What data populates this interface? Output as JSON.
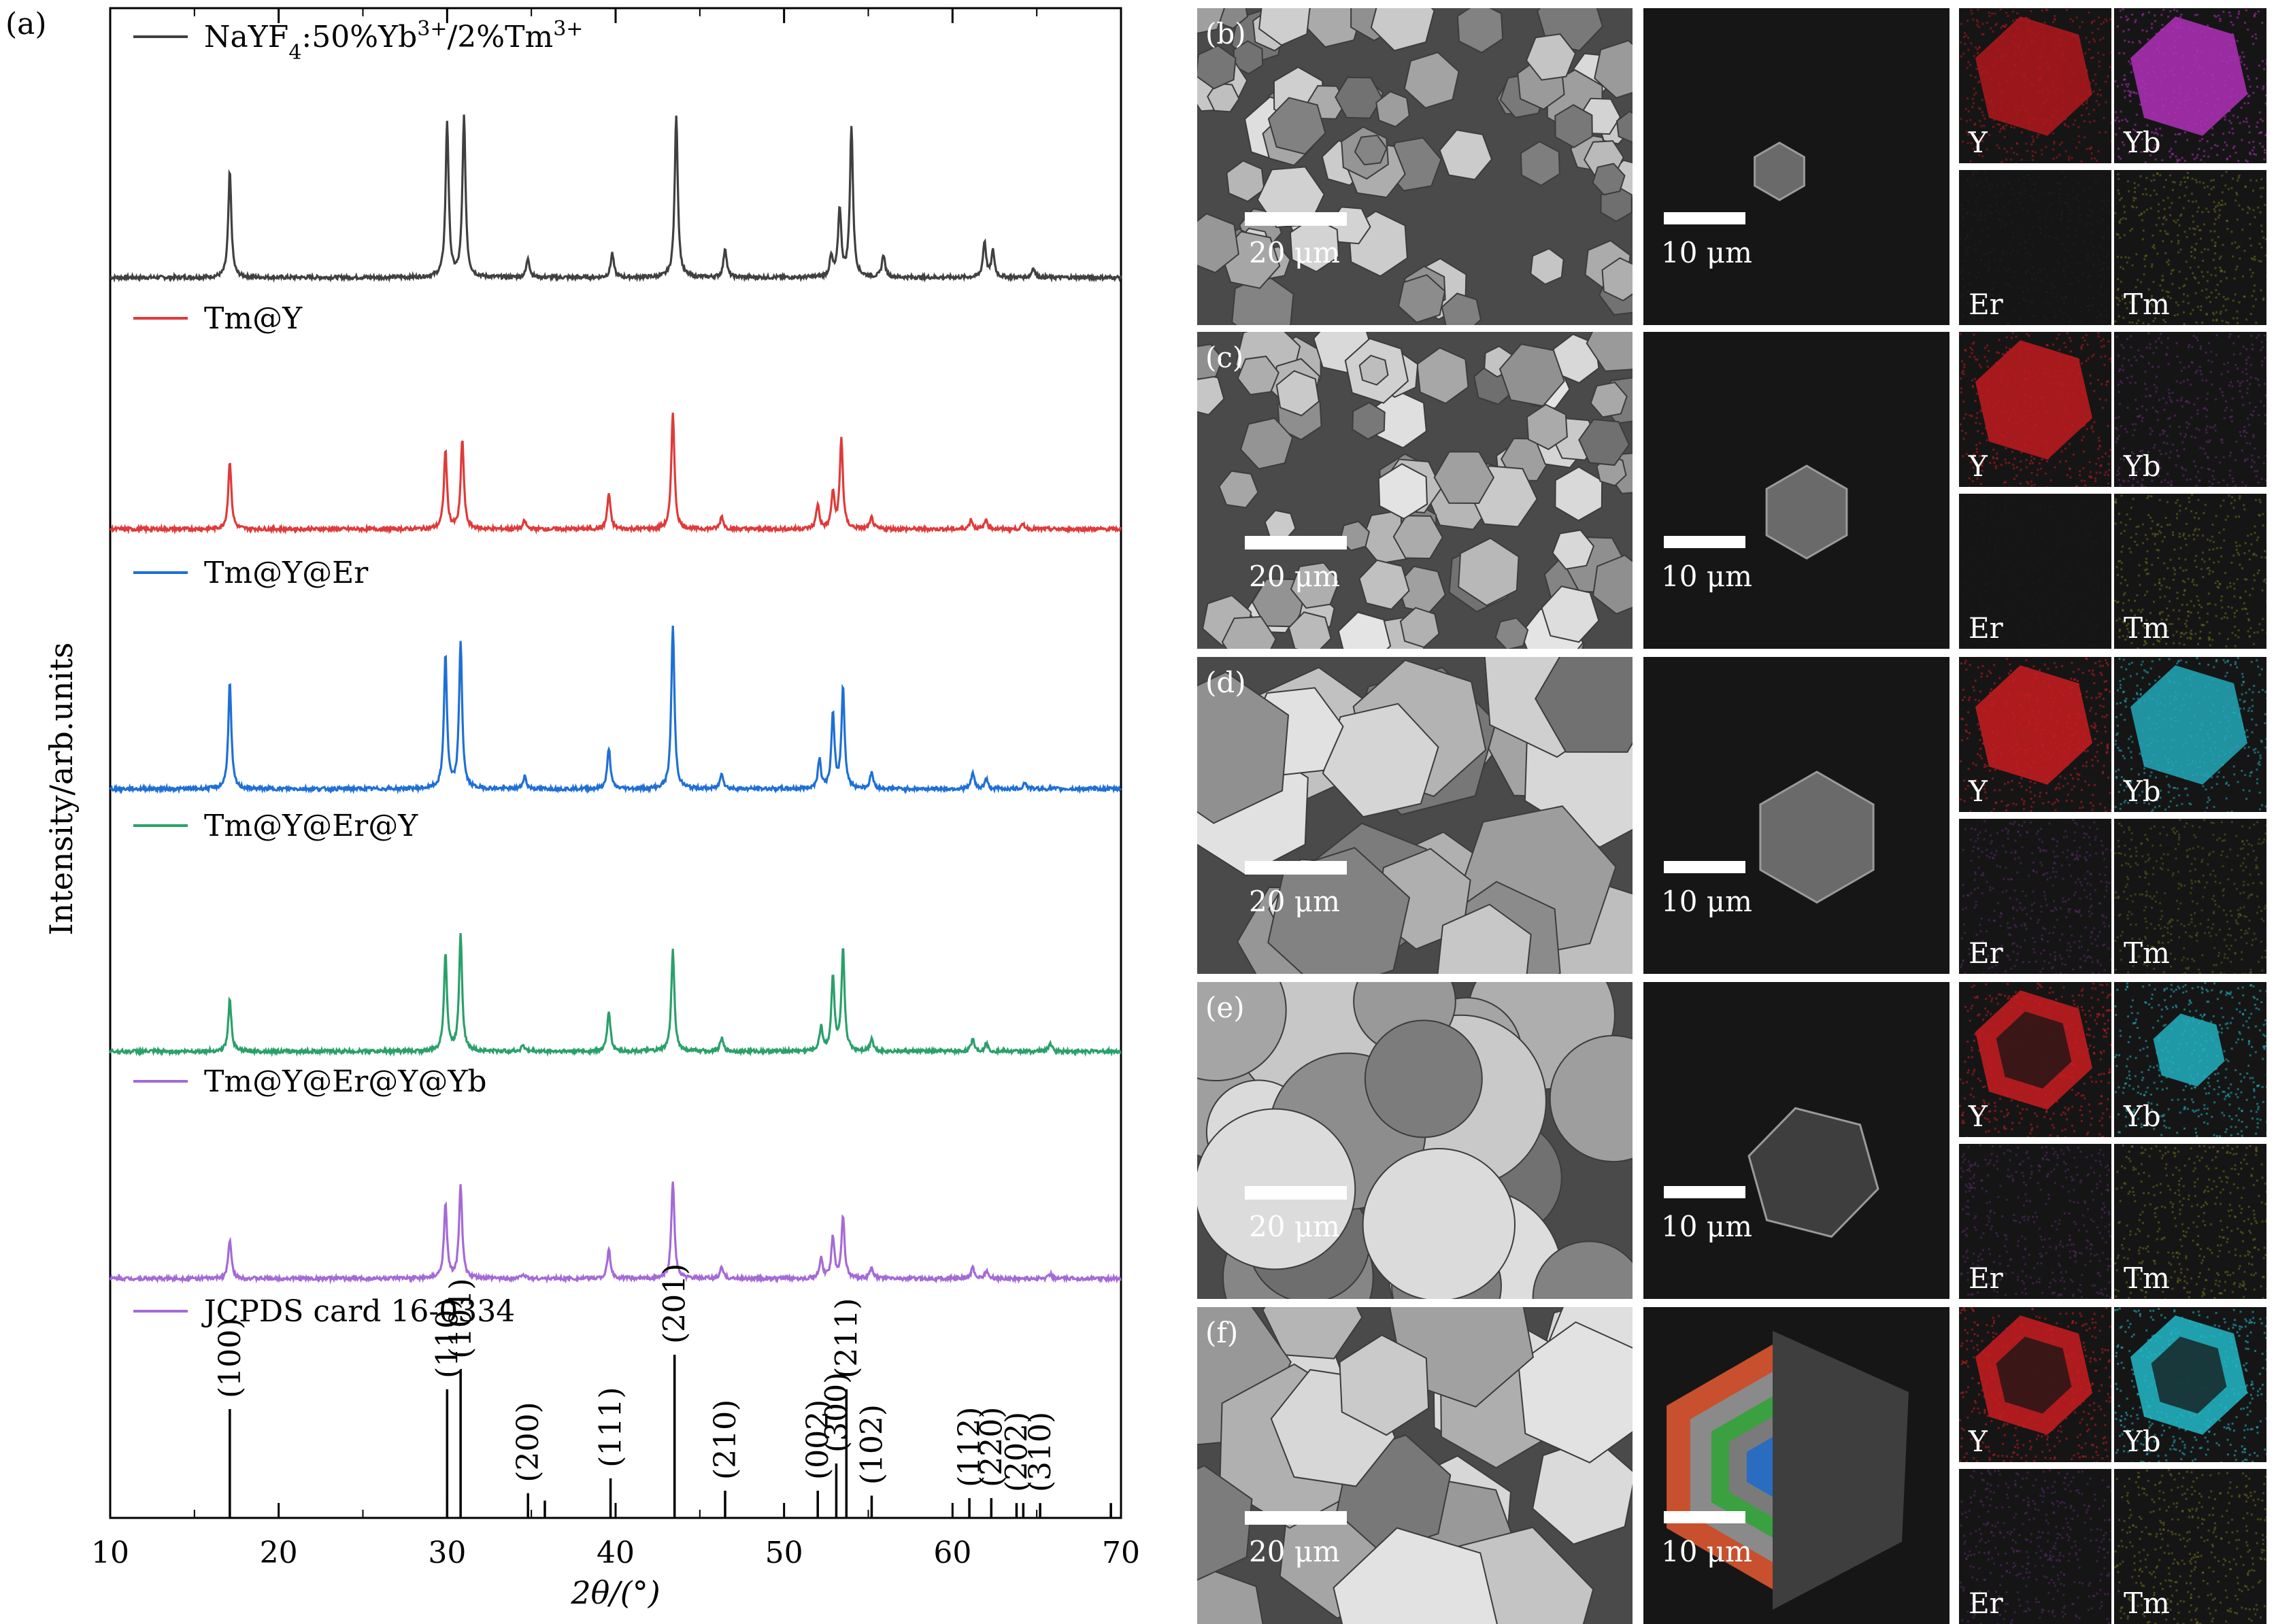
{
  "panel_a_label": "(a)",
  "chart_data": {
    "type": "line",
    "xlabel": "2θ/(°)",
    "ylabel": "Intensity/arb.units",
    "xlim": [
      10,
      70
    ],
    "xticks": [
      10,
      20,
      30,
      40,
      50,
      60,
      70
    ],
    "series": [
      {
        "name": "NaYF4:50%Yb3+/2%Tm3+",
        "color": "#404040",
        "peaks": [
          [
            17.1,
            0.65
          ],
          [
            30.0,
            0.95
          ],
          [
            31.0,
            0.98
          ],
          [
            34.8,
            0.12
          ],
          [
            39.8,
            0.15
          ],
          [
            43.6,
            1.0
          ],
          [
            46.5,
            0.18
          ],
          [
            52.8,
            0.12
          ],
          [
            53.3,
            0.42
          ],
          [
            54.0,
            0.92
          ],
          [
            55.9,
            0.14
          ],
          [
            61.9,
            0.22
          ],
          [
            62.4,
            0.16
          ],
          [
            64.8,
            0.06
          ]
        ]
      },
      {
        "name": "Tm@Y",
        "color": "#e03a3a",
        "peaks": [
          [
            17.1,
            0.42
          ],
          [
            29.9,
            0.48
          ],
          [
            30.9,
            0.55
          ],
          [
            34.6,
            0.05
          ],
          [
            39.6,
            0.22
          ],
          [
            43.4,
            0.72
          ],
          [
            46.3,
            0.08
          ],
          [
            52.0,
            0.15
          ],
          [
            52.9,
            0.22
          ],
          [
            53.4,
            0.55
          ],
          [
            55.2,
            0.07
          ],
          [
            61.1,
            0.06
          ],
          [
            62.0,
            0.06
          ],
          [
            64.2,
            0.03
          ]
        ]
      },
      {
        "name": "Tm@Y@Er",
        "color": "#1f6fd6",
        "peaks": [
          [
            17.1,
            0.65
          ],
          [
            29.9,
            0.82
          ],
          [
            30.8,
            0.9
          ],
          [
            34.6,
            0.08
          ],
          [
            39.6,
            0.25
          ],
          [
            43.4,
            1.0
          ],
          [
            46.3,
            0.1
          ],
          [
            52.1,
            0.18
          ],
          [
            52.9,
            0.45
          ],
          [
            53.5,
            0.62
          ],
          [
            55.2,
            0.1
          ],
          [
            61.2,
            0.1
          ],
          [
            62.0,
            0.06
          ],
          [
            64.3,
            0.04
          ]
        ]
      },
      {
        "name": "Tm@Y@Er@Y",
        "color": "#2aa06a",
        "peaks": [
          [
            17.1,
            0.32
          ],
          [
            29.9,
            0.6
          ],
          [
            30.8,
            0.72
          ],
          [
            34.5,
            0.04
          ],
          [
            39.6,
            0.25
          ],
          [
            43.4,
            0.62
          ],
          [
            46.3,
            0.08
          ],
          [
            52.2,
            0.15
          ],
          [
            52.9,
            0.45
          ],
          [
            53.5,
            0.62
          ],
          [
            55.2,
            0.08
          ],
          [
            61.2,
            0.08
          ],
          [
            62.0,
            0.05
          ],
          [
            65.8,
            0.05
          ]
        ]
      },
      {
        "name": "Tm@Y@Er@Y@Yb",
        "color": "#a46ad6",
        "peaks": [
          [
            17.1,
            0.24
          ],
          [
            29.9,
            0.46
          ],
          [
            30.8,
            0.58
          ],
          [
            34.5,
            0.03
          ],
          [
            39.6,
            0.18
          ],
          [
            43.4,
            0.6
          ],
          [
            46.3,
            0.07
          ],
          [
            52.2,
            0.12
          ],
          [
            52.9,
            0.25
          ],
          [
            53.5,
            0.38
          ],
          [
            55.2,
            0.07
          ],
          [
            61.2,
            0.07
          ],
          [
            62.0,
            0.05
          ],
          [
            65.8,
            0.03
          ]
        ]
      }
    ],
    "reference": {
      "name": "JCPDS card 16-0334",
      "color": "#a46ad6",
      "lines": [
        {
          "x": 17.1,
          "h": 0.44,
          "label": "(100)"
        },
        {
          "x": 30.0,
          "h": 0.52,
          "label": "(110)"
        },
        {
          "x": 30.8,
          "h": 0.6,
          "label": "(101)"
        },
        {
          "x": 34.8,
          "h": 0.1,
          "label": "(200)"
        },
        {
          "x": 35.8,
          "h": 0.07,
          "label": ""
        },
        {
          "x": 39.7,
          "h": 0.16,
          "label": "(111)"
        },
        {
          "x": 43.5,
          "h": 0.66,
          "label": "(201)"
        },
        {
          "x": 46.5,
          "h": 0.11,
          "label": "(210)"
        },
        {
          "x": 52.0,
          "h": 0.11,
          "label": "(002)"
        },
        {
          "x": 53.1,
          "h": 0.22,
          "label": "(300)"
        },
        {
          "x": 53.7,
          "h": 0.52,
          "label": "(211)"
        },
        {
          "x": 55.2,
          "h": 0.09,
          "label": "(102)"
        },
        {
          "x": 61.0,
          "h": 0.08,
          "label": "(112)"
        },
        {
          "x": 62.3,
          "h": 0.08,
          "label": "(220)"
        },
        {
          "x": 63.8,
          "h": 0.06,
          "label": "(202)"
        },
        {
          "x": 64.2,
          "h": 0.06,
          "label": ""
        },
        {
          "x": 65.2,
          "h": 0.06,
          "label": "(310)"
        },
        {
          "x": 69.4,
          "h": 0.06,
          "label": ""
        }
      ]
    }
  },
  "panels": [
    {
      "label": "(b)",
      "sem_scale": "20 μm",
      "dark_scale": "10 μm",
      "maps": [
        "Y",
        "Yb",
        "Er",
        "Tm"
      ],
      "map_colors": [
        "#b0181c",
        "#b030b8",
        "#202020",
        "#6d6d1e"
      ]
    },
    {
      "label": "(c)",
      "sem_scale": "20 μm",
      "dark_scale": "10 μm",
      "maps": [
        "Y",
        "Yb",
        "Er",
        "Tm"
      ],
      "map_colors": [
        "#c01a1e",
        "#6a2c78",
        "#1c1c1c",
        "#6d6d1e"
      ]
    },
    {
      "label": "(d)",
      "sem_scale": "20 μm",
      "dark_scale": "10 μm",
      "maps": [
        "Y",
        "Yb",
        "Er",
        "Tm"
      ],
      "map_colors": [
        "#c81c20",
        "#22a8b8",
        "#5a2a6a",
        "#5d5d1e"
      ]
    },
    {
      "label": "(e)",
      "sem_scale": "20 μm",
      "dark_scale": "10 μm",
      "maps": [
        "Y",
        "Yb",
        "Er",
        "Tm"
      ],
      "map_colors": [
        "#c81c20",
        "#22b0c0",
        "#5a2a6a",
        "#6d6d1e"
      ]
    },
    {
      "label": "(f)",
      "sem_scale": "20 μm",
      "dark_scale": "10 μm",
      "maps": [
        "Y",
        "Yb",
        "Er",
        "Tm"
      ],
      "map_colors": [
        "#c81c20",
        "#22b8c8",
        "#5a2a6a",
        "#6d6d1e"
      ]
    }
  ]
}
